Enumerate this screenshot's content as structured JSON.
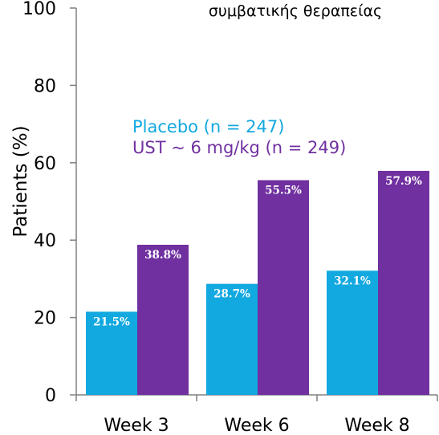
{
  "chart_data": {
    "type": "bar",
    "title": "συμβατικής θεραπείας",
    "ylabel": "Patients (%)",
    "xlabel": "",
    "ylim": [
      0,
      100
    ],
    "yticks": [
      0,
      20,
      40,
      60,
      80,
      100
    ],
    "categories": [
      "Week 3",
      "Week 6",
      "Week 8"
    ],
    "series": [
      {
        "name": "Placebo (n = 247)",
        "color": "#12a8e0",
        "values": [
          21.5,
          28.7,
          32.1
        ],
        "labels": [
          "21.5%",
          "28.7%",
          "32.1%"
        ]
      },
      {
        "name": "UST ~ 6 mg/kg (n = 249)",
        "color": "#7030a0",
        "values": [
          38.8,
          55.5,
          57.9
        ],
        "labels": [
          "38.8%",
          "55.5%",
          "57.9%"
        ]
      }
    ],
    "legend_position": "inside-top-left",
    "grid": false
  }
}
